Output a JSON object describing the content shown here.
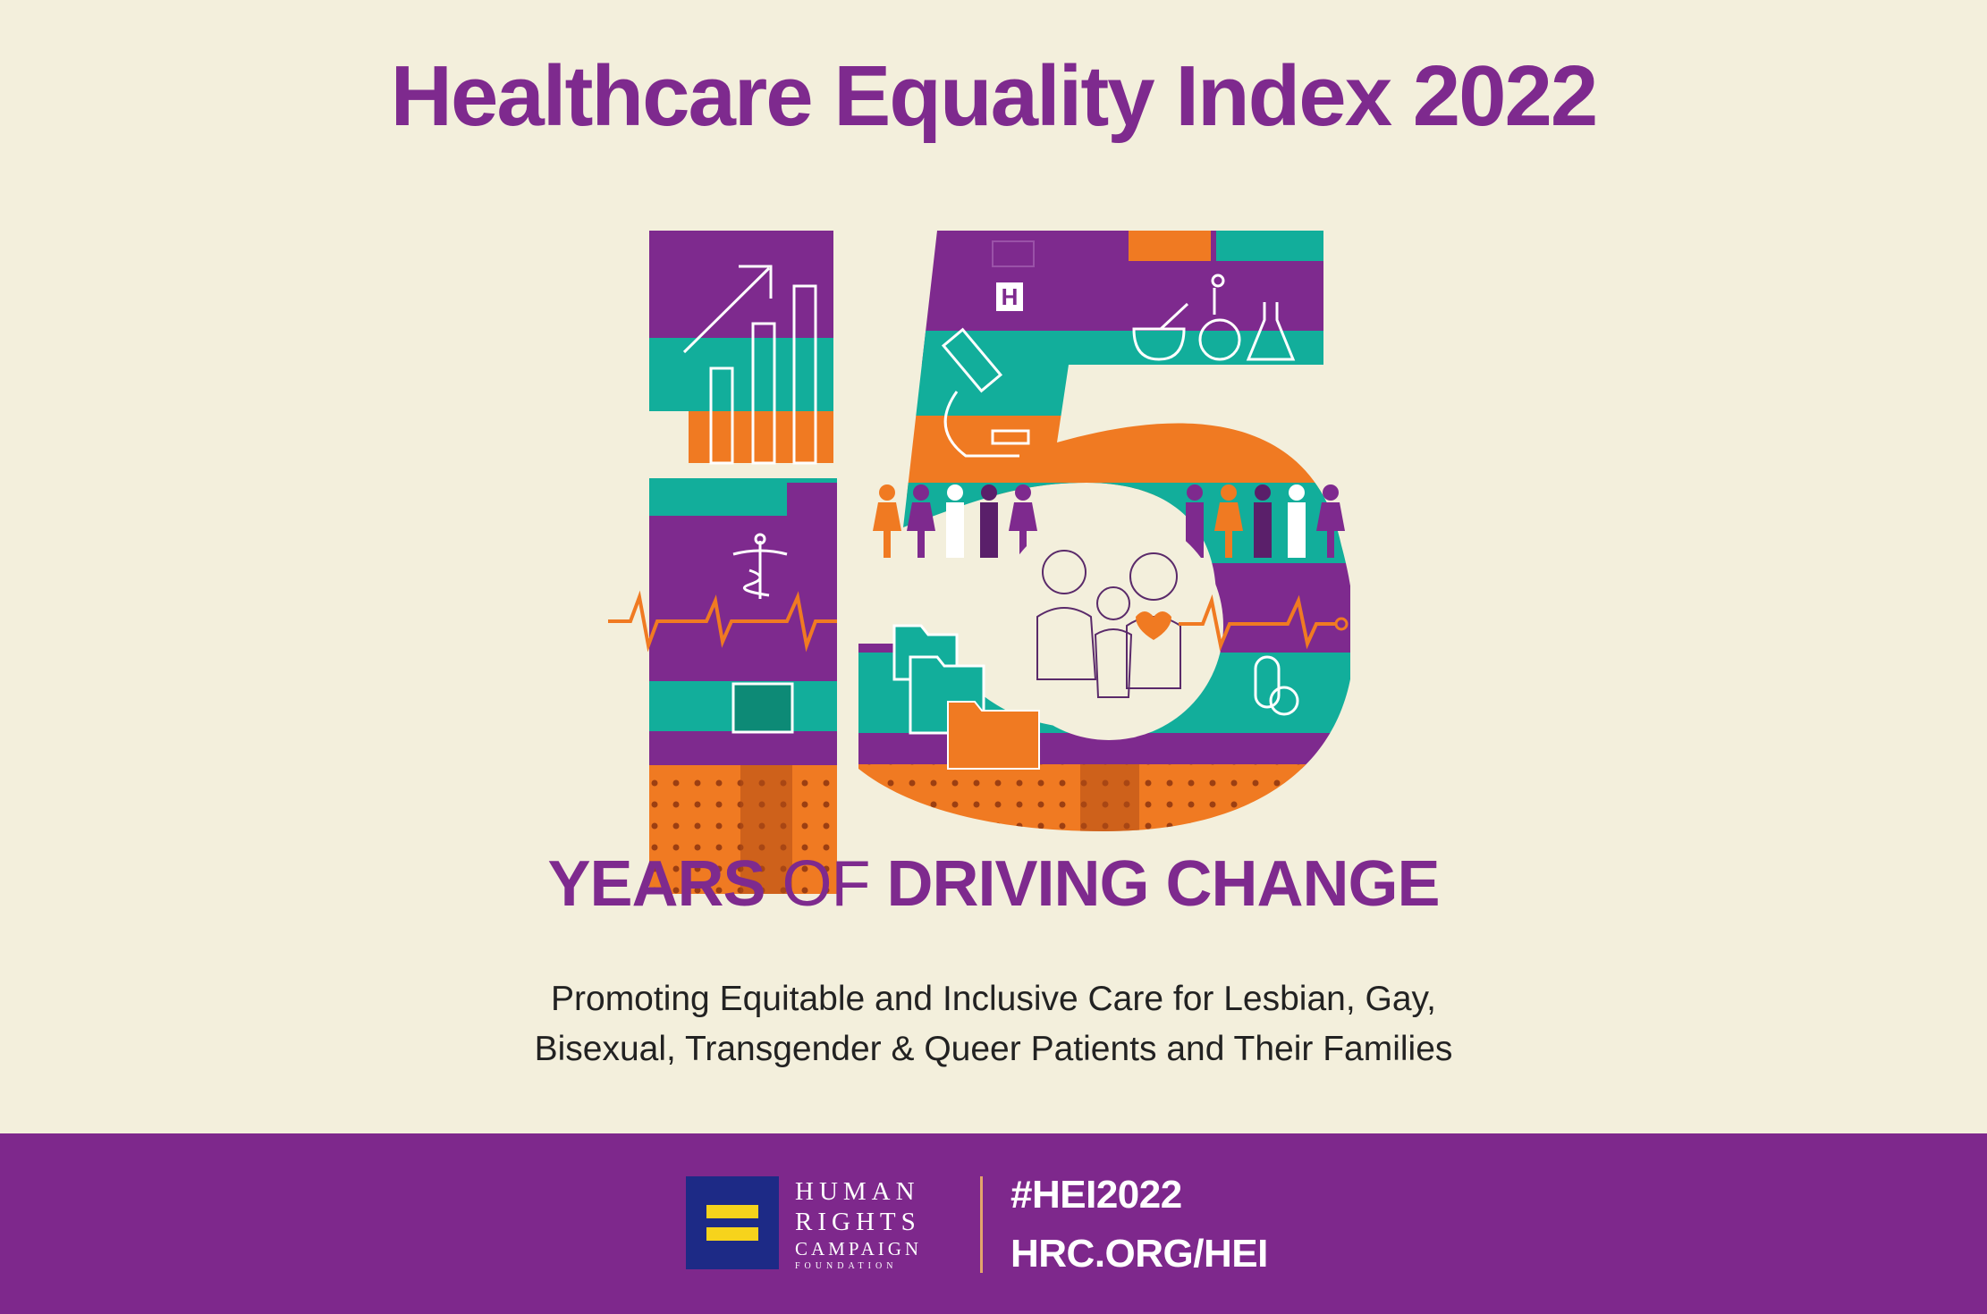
{
  "title": "Healthcare Equality Index 2022",
  "illustration": {
    "colors": {
      "purple": "#7e2a8e",
      "teal": "#12ae9b",
      "orange": "#f07a22",
      "cream": "#f3efdc"
    },
    "hospital_letter": "H"
  },
  "tagline": {
    "part1": "YEARS ",
    "part2": "OF ",
    "part3": "DRIVING CHANGE"
  },
  "subtitle": {
    "line1": "Promoting Equitable and Inclusive Care for Lesbian, Gay,",
    "line2": "Bisexual, Transgender & Queer Patients and Their Families"
  },
  "footer": {
    "org": {
      "line1": "HUMAN",
      "line2": "RIGHTS",
      "line3": "CAMPAIGN",
      "line4": "FOUNDATION"
    },
    "hashtag": "#HEI2022",
    "url": "HRC.ORG/HEI"
  }
}
